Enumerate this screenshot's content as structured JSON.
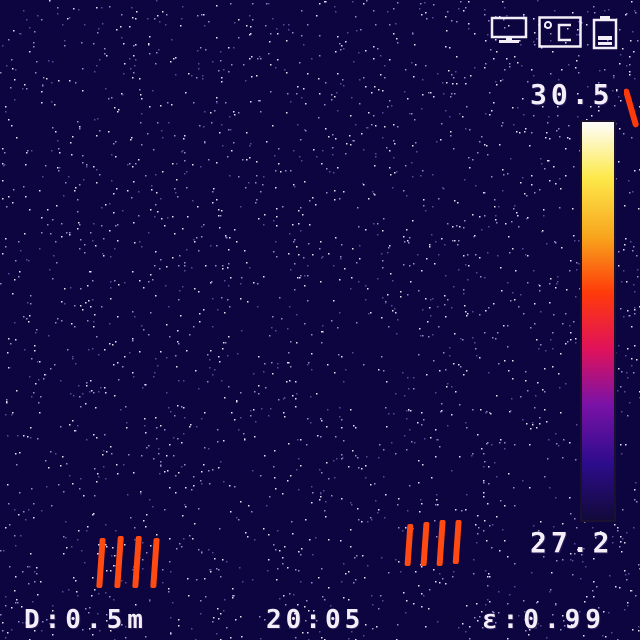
{
  "thermal_view": {
    "scale_max": "30.5",
    "scale_min": "27.2",
    "distance": "D:0.5m",
    "time": "20:05",
    "emissivity": "ε:0.99",
    "colors": {
      "background": "#0d0540",
      "scale_gradient": [
        "#fdfdfb",
        "#fde94a",
        "#f8a41c",
        "#ff3a0a",
        "#e0125a",
        "#7a12a8",
        "#2c0c8a",
        "#120a3a"
      ],
      "hotspot": "#ff4a12"
    }
  },
  "status_icons": [
    "monitor-icon",
    "celsius-icon",
    "battery-icon"
  ]
}
